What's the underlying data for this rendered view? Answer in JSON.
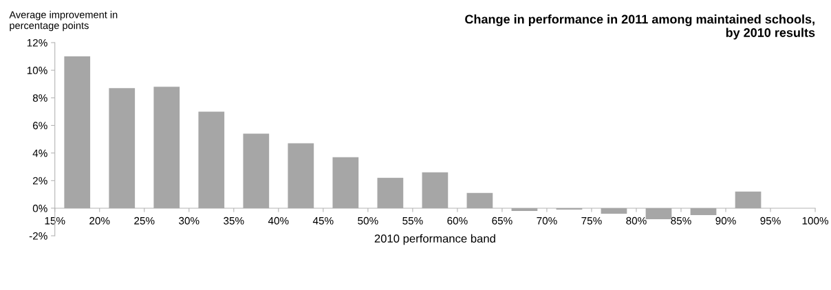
{
  "chart_data": {
    "type": "histogram",
    "title": "Change in performance in 2011 among maintained schools,\nby 2010 results",
    "ylabel": "Average improvement in\npercentage points",
    "xlabel": "2010 performance band",
    "bins": [
      15,
      20,
      25,
      30,
      35,
      40,
      45,
      50,
      55,
      60,
      65,
      70,
      75,
      80,
      85,
      90,
      95,
      100
    ],
    "values": [
      11.0,
      8.7,
      8.8,
      7.0,
      5.4,
      4.7,
      3.7,
      2.2,
      2.6,
      1.1,
      -0.2,
      -0.1,
      -0.4,
      -0.8,
      -0.5,
      1.2,
      0
    ],
    "color": "#a6a6a6",
    "xlim": [
      15,
      100
    ],
    "xticks": [
      {
        "value": 15,
        "label": "15%"
      },
      {
        "value": 20,
        "label": "20%"
      },
      {
        "value": 25,
        "label": "25%"
      },
      {
        "value": 30,
        "label": "30%"
      },
      {
        "value": 35,
        "label": "35%"
      },
      {
        "value": 40,
        "label": "40%"
      },
      {
        "value": 45,
        "label": "45%"
      },
      {
        "value": 50,
        "label": "50%"
      },
      {
        "value": 55,
        "label": "55%"
      },
      {
        "value": 60,
        "label": "60%"
      },
      {
        "value": 65,
        "label": "65%"
      },
      {
        "value": 70,
        "label": "70%"
      },
      {
        "value": 75,
        "label": "75%"
      },
      {
        "value": 80,
        "label": "80%"
      },
      {
        "value": 85,
        "label": "85%"
      },
      {
        "value": 90,
        "label": "90%"
      },
      {
        "value": 95,
        "label": "95%"
      },
      {
        "value": 100,
        "label": "100%"
      }
    ],
    "ylim": [
      -2,
      12
    ],
    "yticks": [
      {
        "value": -2,
        "label": "-2%"
      },
      {
        "value": 0,
        "label": "0%"
      },
      {
        "value": 2,
        "label": "2%"
      },
      {
        "value": 4,
        "label": "4%"
      },
      {
        "value": 6,
        "label": "6%"
      },
      {
        "value": 8,
        "label": "8%"
      },
      {
        "value": 10,
        "label": "10%"
      },
      {
        "value": 12,
        "label": "12%"
      }
    ],
    "grid": false,
    "legend": false
  }
}
